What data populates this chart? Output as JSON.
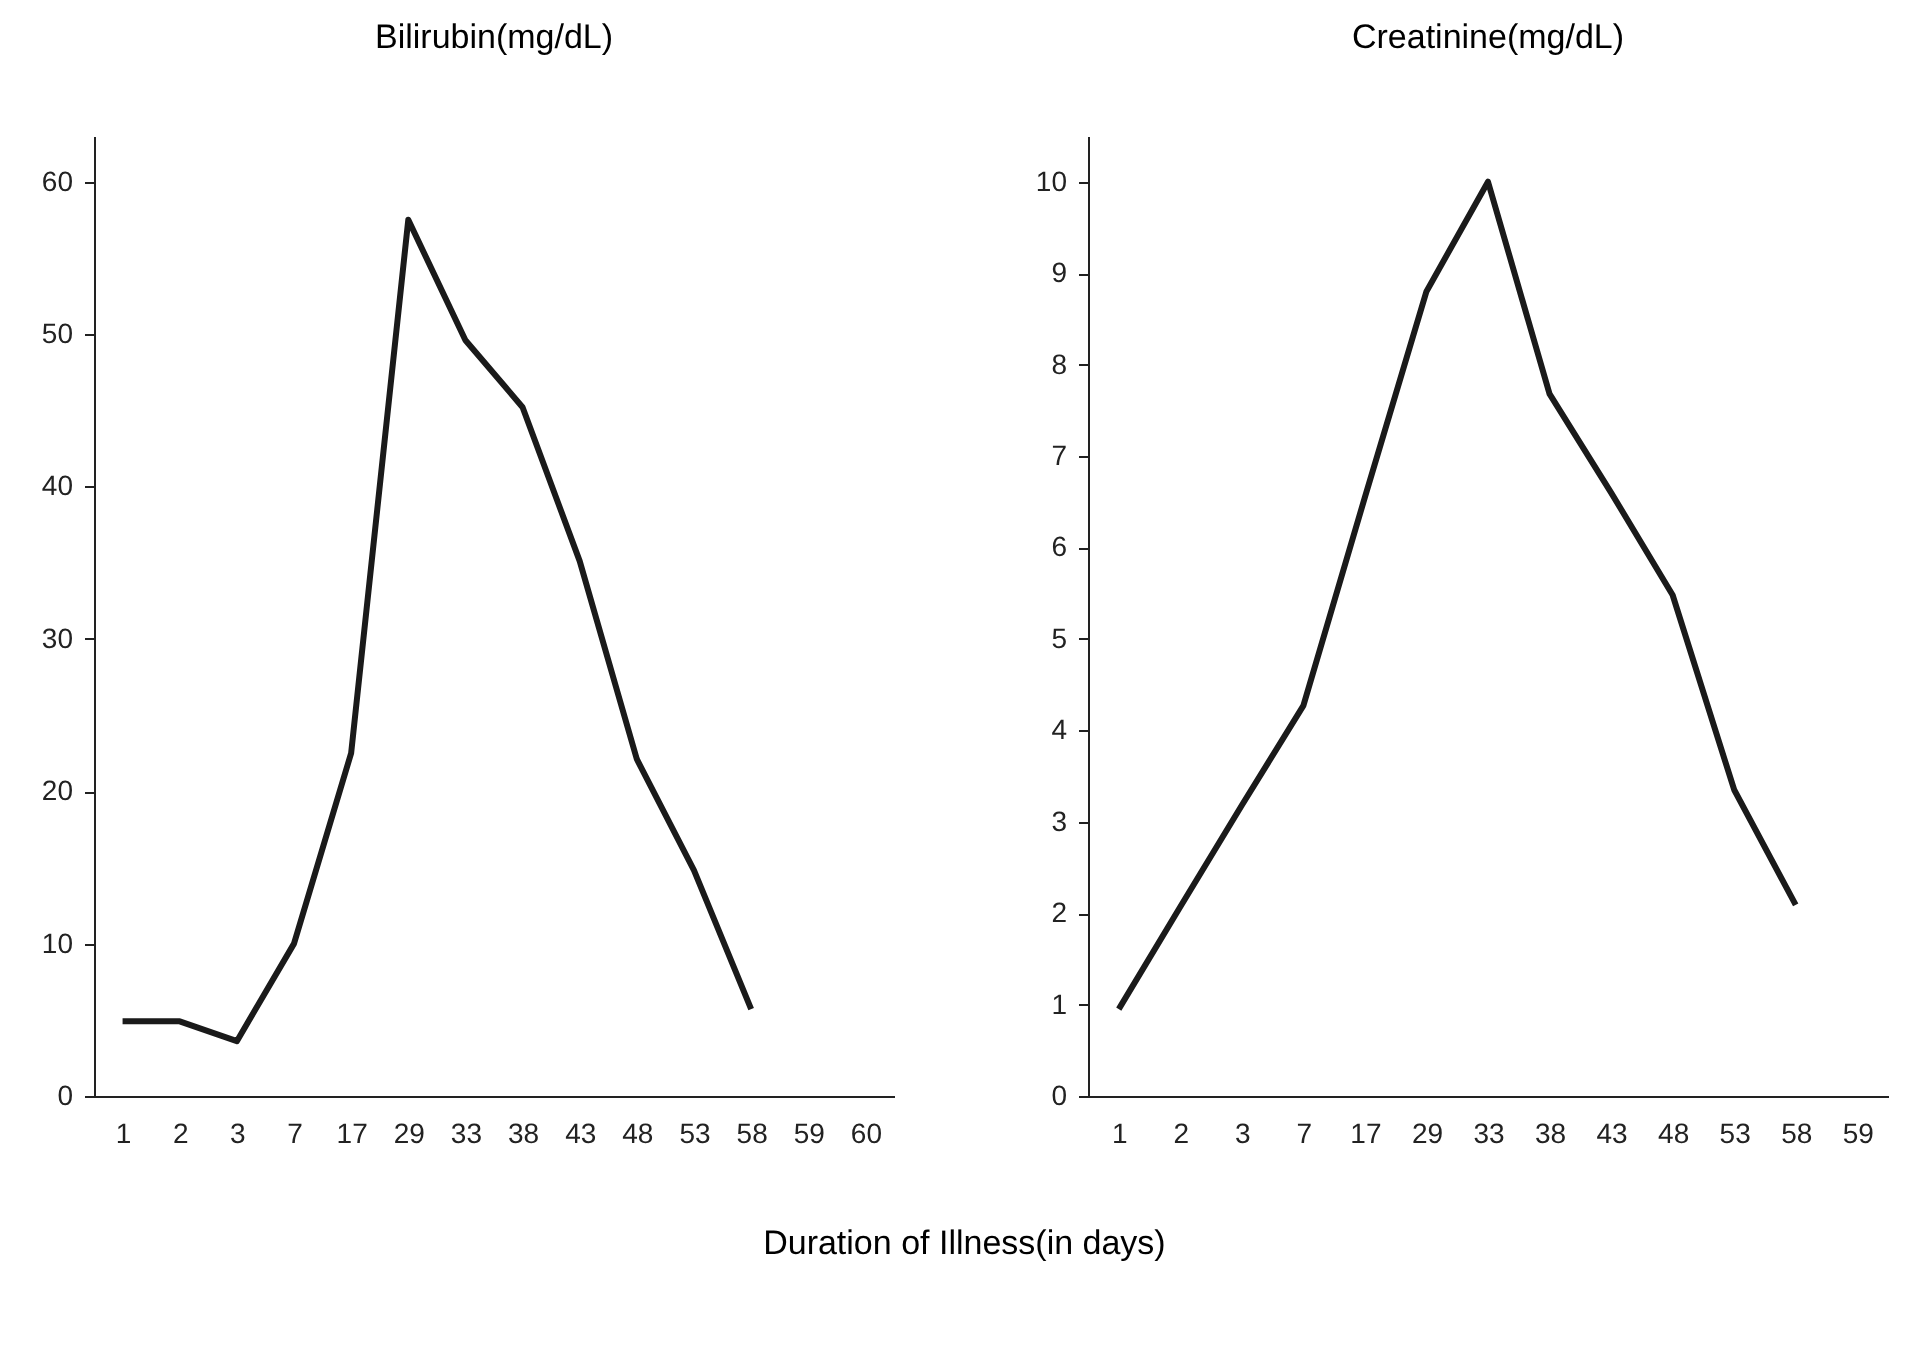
{
  "chart_data": [
    {
      "type": "line",
      "title": "Bilirubin(mg/dL)",
      "xlabel": "Duration of Illness(in days)",
      "categories": [
        "1",
        "2",
        "3",
        "7",
        "17",
        "29",
        "33",
        "38",
        "43",
        "48",
        "53",
        "58",
        "59",
        "60"
      ],
      "values": [
        4.9,
        4.9,
        3.6,
        10,
        22.5,
        57.5,
        49.6,
        45.2,
        35.1,
        22.1,
        14.8,
        5.7,
        null,
        null
      ],
      "color": "#1a1a1a",
      "ylim": [
        0,
        63
      ],
      "yticks": [
        0,
        10,
        20,
        30,
        40,
        50,
        60
      ]
    },
    {
      "type": "line",
      "title": "Creatinine(mg/dL)",
      "categories": [
        "1",
        "2",
        "3",
        "7",
        "17",
        "29",
        "33",
        "38",
        "43",
        "48",
        "53",
        "58",
        "59"
      ],
      "values": [
        0.95,
        2.07,
        3.18,
        4.27,
        6.55,
        8.8,
        10,
        7.68,
        6.6,
        5.48,
        3.35,
        2.09,
        null
      ],
      "color": "#1a1a1a",
      "ylim": [
        0,
        10.5
      ],
      "yticks": [
        0,
        1,
        2,
        3,
        4,
        5,
        6,
        7,
        8,
        9,
        10
      ]
    }
  ]
}
